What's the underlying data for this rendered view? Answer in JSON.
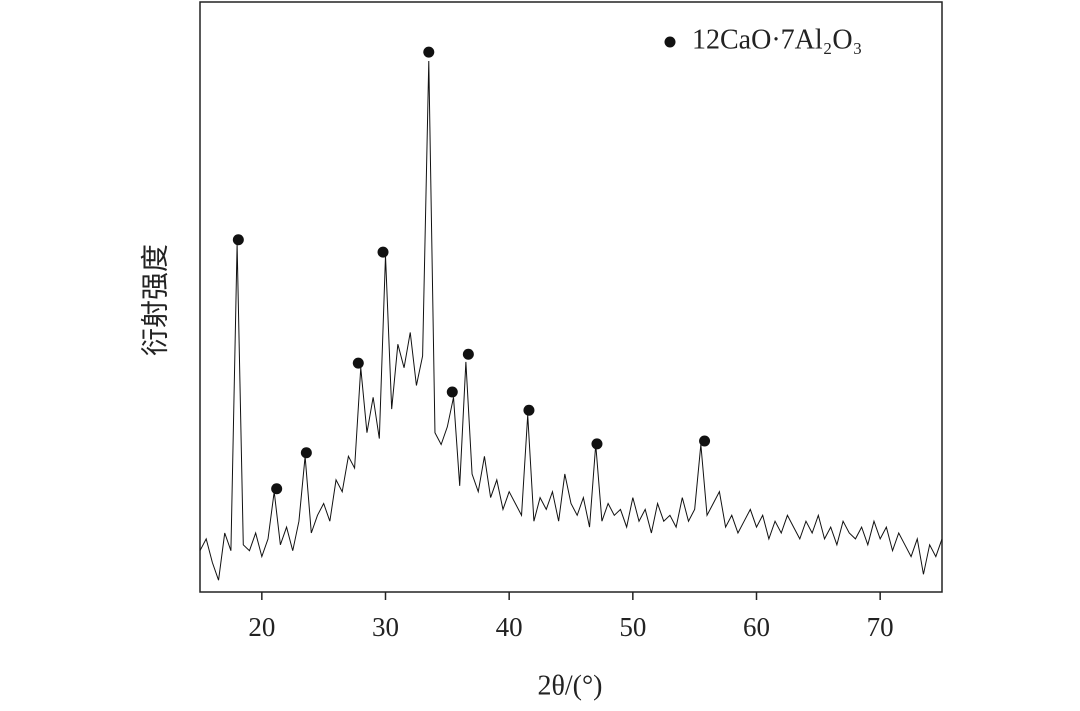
{
  "chart_data": {
    "type": "line",
    "x_label": "2θ/(°)",
    "y_label": "衍射强度",
    "xlim": [
      15,
      75
    ],
    "ylim": [
      0,
      100
    ],
    "xticks": [
      20,
      30,
      40,
      50,
      60,
      70
    ],
    "legend": "top-right",
    "series": [
      {
        "type": "line",
        "color": "#111",
        "x": [
          15,
          15.5,
          16,
          16.5,
          17,
          17.5,
          18,
          18.5,
          19,
          19.5,
          20,
          20.5,
          21,
          21.5,
          22,
          22.5,
          23,
          23.5,
          24,
          24.5,
          25,
          25.5,
          26,
          26.5,
          27,
          27.5,
          28,
          28.5,
          29,
          29.5,
          30,
          30.5,
          31,
          31.5,
          32,
          32.5,
          33,
          33.5,
          34,
          34.5,
          35,
          35.5,
          36,
          36.5,
          37,
          37.5,
          38,
          38.5,
          39,
          39.5,
          40,
          40.5,
          41,
          41.5,
          42,
          42.5,
          43,
          43.5,
          44,
          44.5,
          45,
          45.5,
          46,
          46.5,
          47,
          47.5,
          48,
          48.5,
          49,
          49.5,
          50,
          50.5,
          51,
          51.5,
          52,
          52.5,
          53,
          53.5,
          54,
          54.5,
          55,
          55.5,
          56,
          56.5,
          57,
          57.5,
          58,
          58.5,
          59,
          59.5,
          60,
          60.5,
          61,
          61.5,
          62,
          62.5,
          63,
          63.5,
          64,
          64.5,
          65,
          65.5,
          66,
          66.5,
          67,
          67.5,
          68,
          68.5,
          69,
          69.5,
          70,
          70.5,
          71,
          71.5,
          72,
          72.5,
          73,
          73.5,
          74,
          74.5,
          75
        ],
        "values": [
          7,
          9,
          5,
          2,
          10,
          7,
          59,
          8,
          7,
          10,
          6,
          9,
          17,
          8,
          11,
          7,
          12,
          23,
          10,
          13,
          15,
          12,
          19,
          17,
          23,
          21,
          38,
          27,
          33,
          26,
          57,
          31,
          42,
          38,
          44,
          35,
          40,
          90,
          27,
          25,
          28,
          33,
          18,
          39,
          20,
          17,
          23,
          16,
          19,
          14,
          17,
          15,
          13,
          30,
          12,
          16,
          14,
          17,
          12,
          20,
          15,
          13,
          16,
          11,
          25,
          12,
          15,
          13,
          14,
          11,
          16,
          12,
          14,
          10,
          15,
          12,
          13,
          11,
          16,
          12,
          14,
          25,
          13,
          15,
          17,
          11,
          13,
          10,
          12,
          14,
          11,
          13,
          9,
          12,
          10,
          13,
          11,
          9,
          12,
          10,
          13,
          9,
          11,
          8,
          12,
          10,
          9,
          11,
          8,
          12,
          9,
          11,
          7,
          10,
          8,
          6,
          9,
          3,
          8,
          6,
          9
        ]
      },
      {
        "type": "scatter",
        "name": "12CaO·7Al₂O₃",
        "color": "#111",
        "x": [
          18.1,
          21.2,
          23.6,
          27.8,
          29.8,
          33.5,
          35.4,
          36.7,
          41.6,
          47.1,
          55.8
        ],
        "values": [
          59.7,
          17.5,
          23.6,
          38.8,
          57.6,
          91.5,
          33.9,
          40.3,
          30.8,
          25.1,
          25.6
        ]
      }
    ]
  }
}
